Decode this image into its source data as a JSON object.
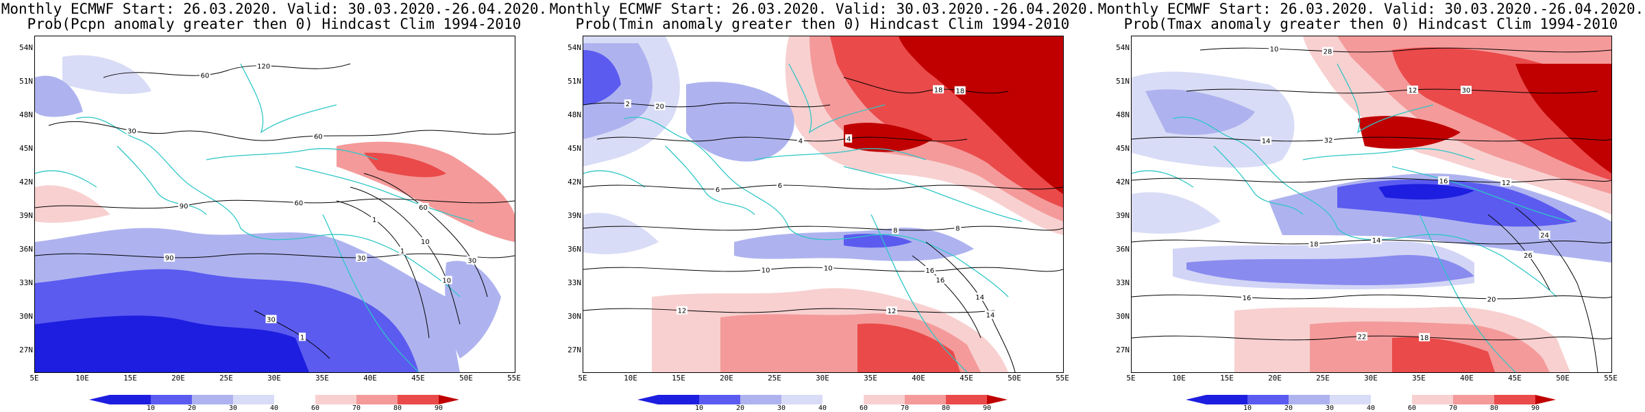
{
  "colors": {
    "blue_strong": "#1e1ee0",
    "blue_mid": "#5b5bf0",
    "blue_light": "#aeb3ef",
    "blue_pale": "#d9dcf6",
    "red_pale": "#f8d0d0",
    "red_light": "#f49a9a",
    "red_mid": "#ea4a4a",
    "red_strong": "#c00000",
    "coast": "#2ec6c6"
  },
  "colorbar": {
    "ticks": [
      "10",
      "20",
      "30",
      "40",
      "60",
      "70",
      "80",
      "90"
    ]
  },
  "axes": {
    "lat_labels": [
      "54N",
      "51N",
      "48N",
      "45N",
      "42N",
      "39N",
      "36N",
      "33N",
      "30N",
      "27N"
    ],
    "lon_labels": [
      "5E",
      "10E",
      "15E",
      "20E",
      "25E",
      "30E",
      "35E",
      "40E",
      "45E",
      "50E",
      "55E"
    ]
  },
  "panels": [
    {
      "title_line1": "Monthly ECMWF Start: 26.03.2020. Valid: 30.03.2020.-26.04.2020.",
      "title_line2": "Prob(Pcpn anomaly greater then 0) Hindcast Clim 1994-2010",
      "contour_labels": [
        "30",
        "60",
        "90",
        "120",
        "60",
        "10",
        "1",
        "30",
        "60",
        "90",
        "30",
        "60",
        "30",
        "10",
        "1",
        "1"
      ]
    },
    {
      "title_line1": "Monthly ECMWF Start: 26.03.2020. Valid: 30.03.2020.-26.04.2020.",
      "title_line2": "Prob(Tmin anomaly greater then 0) Hindcast Clim 1994-2010",
      "contour_labels": [
        "2",
        "4",
        "6",
        "8",
        "10",
        "12",
        "14",
        "16",
        "18",
        "20",
        "4",
        "6",
        "8",
        "10",
        "12",
        "14",
        "16",
        "18"
      ]
    },
    {
      "title_line1": "Monthly ECMWF Start: 26.03.2020. Valid: 30.03.2020.-26.04.2020.",
      "title_line2": "Prob(Tmax anomaly greater then 0) Hindcast Clim 1994-2010",
      "contour_labels": [
        "10",
        "12",
        "14",
        "16",
        "18",
        "20",
        "22",
        "24",
        "26",
        "28",
        "30",
        "32",
        "12",
        "14",
        "16",
        "18"
      ]
    }
  ]
}
